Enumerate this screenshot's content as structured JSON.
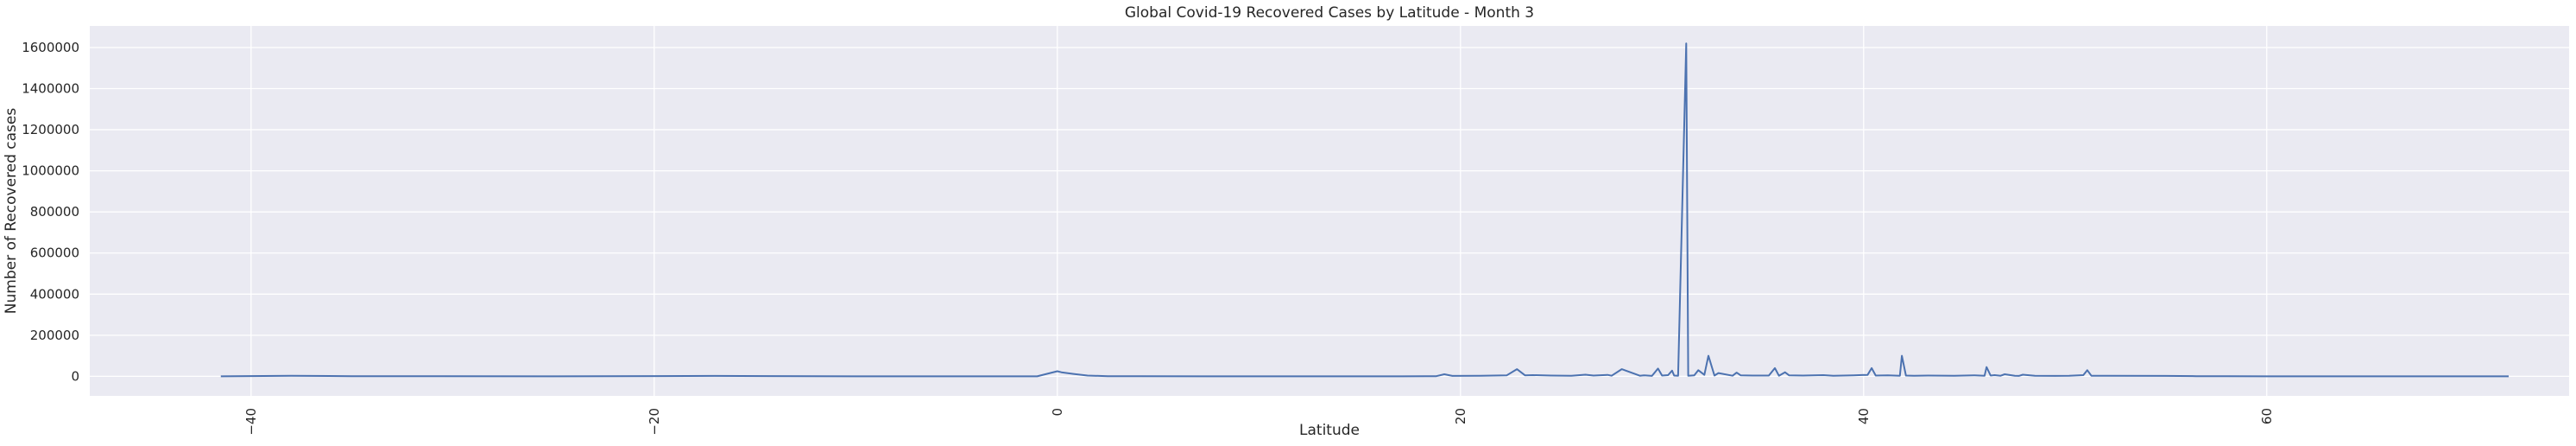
{
  "chart_data": {
    "type": "line",
    "title": "Global Covid-19 Recovered Cases by Latitude - Month 3",
    "xlabel": "Latitude",
    "ylabel": "Number of Recovered cases",
    "xlim": [
      -48,
      75
    ],
    "ylim": [
      -95000,
      1705000
    ],
    "x_ticks": [
      -40,
      -20,
      0,
      20,
      40,
      60
    ],
    "x_tick_labels": [
      "−40",
      "−20",
      "0",
      "20",
      "40",
      "60"
    ],
    "y_ticks": [
      0,
      200000,
      400000,
      600000,
      800000,
      1000000,
      1200000,
      1400000,
      1600000
    ],
    "y_tick_labels": [
      "0",
      "200000",
      "400000",
      "600000",
      "800000",
      "1000000",
      "1200000",
      "1400000",
      "1600000"
    ],
    "grid": true,
    "background": "#eaeaf2",
    "grid_color": "#ffffff",
    "line_color": "#4c72b0",
    "series": [
      {
        "x": [
          -41.5,
          -38.0,
          -35.0,
          -25.0,
          -17.0,
          -10.0,
          -5.0,
          -1.0,
          0.0,
          0.2,
          0.8,
          1.5,
          2.5,
          4.0,
          8.0,
          12.0,
          17.0,
          18.8,
          19.2,
          19.6,
          21.0,
          22.3,
          22.8,
          23.2,
          23.6,
          24.5,
          25.5,
          26.2,
          26.6,
          27.3,
          27.5,
          28.0,
          28.9,
          29.1,
          29.5,
          29.8,
          30.0,
          30.3,
          30.5,
          30.6,
          30.8,
          31.2,
          31.3,
          31.6,
          31.8,
          32.1,
          32.3,
          32.6,
          32.8,
          33.5,
          33.7,
          33.9,
          34.5,
          35.3,
          35.6,
          35.8,
          36.1,
          36.3,
          37.0,
          38.0,
          38.5,
          39.5,
          40.2,
          40.4,
          40.6,
          41.2,
          41.8,
          41.9,
          42.1,
          42.5,
          43.2,
          44.5,
          45.5,
          46.0,
          46.1,
          46.3,
          46.5,
          46.8,
          47.0,
          47.5,
          47.7,
          47.9,
          48.5,
          49.5,
          50.2,
          50.9,
          51.1,
          51.3,
          52.0,
          55.0,
          56.5,
          58.0,
          60.0,
          63.0,
          65.0,
          68.0,
          72.0
        ],
        "y": [
          0,
          3000,
          1000,
          0,
          2000,
          0,
          0,
          0,
          25000,
          20000,
          12000,
          4000,
          1000,
          500,
          0,
          0,
          0,
          1000,
          10000,
          2000,
          3000,
          5000,
          35000,
          5000,
          6000,
          4000,
          3000,
          8000,
          4000,
          7000,
          3000,
          35000,
          3000,
          5000,
          2000,
          38000,
          4000,
          6000,
          28000,
          4000,
          3000,
          1620000,
          3000,
          5000,
          30000,
          7000,
          100000,
          4000,
          16000,
          3000,
          18000,
          5000,
          4000,
          4000,
          40000,
          3000,
          20000,
          5000,
          4000,
          6000,
          3000,
          5000,
          7000,
          40000,
          4000,
          5000,
          3000,
          100000,
          4000,
          3000,
          4000,
          3000,
          5000,
          3000,
          45000,
          4000,
          6000,
          3000,
          10000,
          3000,
          2000,
          8000,
          3000,
          2000,
          3000,
          6000,
          30000,
          3000,
          3000,
          2000,
          1000,
          500,
          0,
          0,
          0,
          0,
          0
        ]
      }
    ]
  }
}
